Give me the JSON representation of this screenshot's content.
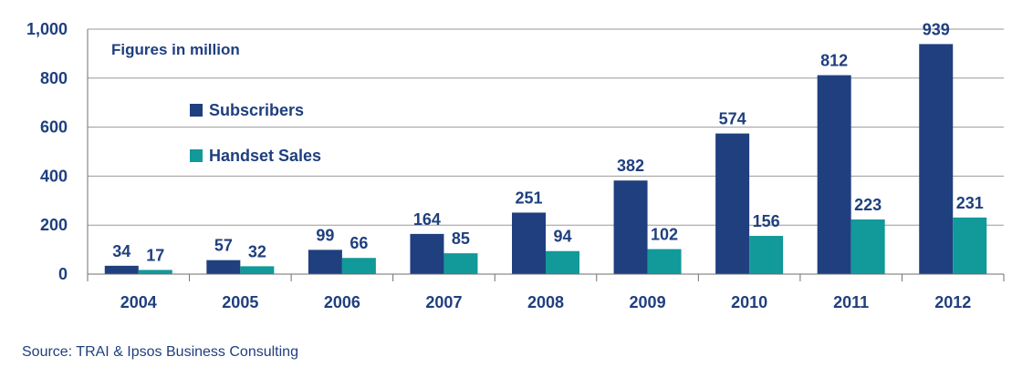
{
  "chart_data": {
    "type": "bar",
    "categories": [
      "2004",
      "2005",
      "2006",
      "2007",
      "2008",
      "2009",
      "2010",
      "2011",
      "2012"
    ],
    "series": [
      {
        "name": "Subscribers",
        "color": "#1f3f7f",
        "values": [
          34,
          57,
          99,
          164,
          251,
          382,
          574,
          812,
          939
        ]
      },
      {
        "name": "Handset Sales",
        "color": "#12999a",
        "values": [
          17,
          32,
          66,
          85,
          94,
          102,
          156,
          223,
          231
        ]
      }
    ],
    "yticks": [
      "0",
      "200",
      "400",
      "600",
      "800",
      "1,000"
    ],
    "ylim": [
      0,
      1000
    ],
    "annotation": "Figures in million",
    "legend_position": "top-left",
    "grid": true
  },
  "source": "Source: TRAI & Ipsos Business Consulting"
}
